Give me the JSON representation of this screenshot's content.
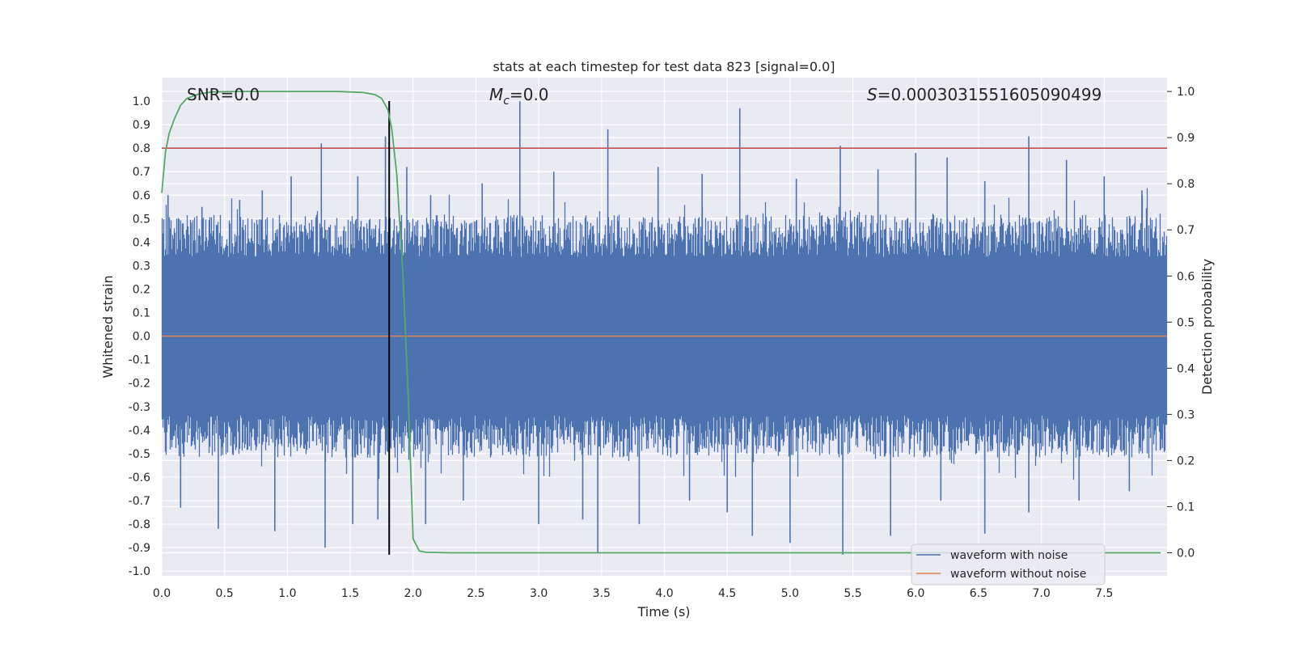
{
  "chart_data": {
    "type": "line",
    "title": "stats at each timestep for test data 823 [signal=0.0]",
    "xlabel": "Time (s)",
    "ylabel": "Whitened strain",
    "ylabel_right": "Detection probability",
    "xlim": [
      0.0,
      8.0
    ],
    "ylim": [
      -1.02,
      1.1
    ],
    "ylim_right": [
      -0.05,
      1.03
    ],
    "xticks": [
      "0.0",
      "0.5",
      "1.0",
      "1.5",
      "2.0",
      "2.5",
      "3.0",
      "3.5",
      "4.0",
      "4.5",
      "5.0",
      "5.5",
      "6.0",
      "6.5",
      "7.0",
      "7.5"
    ],
    "yticks_left": [
      "1.0",
      "0.9",
      "0.8",
      "0.7",
      "0.6",
      "0.5",
      "0.4",
      "0.3",
      "0.2",
      "0.1",
      "0.0",
      "-0.1",
      "-0.2",
      "-0.3",
      "-0.4",
      "-0.5",
      "-0.6",
      "-0.7",
      "-0.8",
      "-0.9",
      "-1.0"
    ],
    "yticks_right": [
      "1.0",
      "0.9",
      "0.8",
      "0.7",
      "0.6",
      "0.5",
      "0.4",
      "0.3",
      "0.2",
      "0.1",
      "0.0"
    ],
    "annotations": {
      "snr": "SNR=0.0",
      "mc_symbol": "M",
      "mc_sub": "c",
      "mc_value": "=0.0",
      "s_symbol": "S",
      "s_value": "=0.0003031551605090499"
    },
    "threshold_line": {
      "y": 0.8,
      "color": "#c44e52"
    },
    "vertical_line": {
      "x": 1.81,
      "y_from": -0.93,
      "y_to": 1.0,
      "color": "#000000"
    },
    "noise_envelope": {
      "typical_max": 0.45,
      "typical_min": -0.45,
      "spikes_up": [
        [
          0.05,
          0.6
        ],
        [
          0.32,
          0.55
        ],
        [
          0.62,
          0.58
        ],
        [
          0.8,
          0.62
        ],
        [
          1.03,
          0.68
        ],
        [
          1.27,
          0.82
        ],
        [
          1.56,
          0.68
        ],
        [
          1.78,
          0.85
        ],
        [
          1.95,
          0.72
        ],
        [
          2.14,
          0.6
        ],
        [
          2.55,
          0.65
        ],
        [
          2.85,
          1.0
        ],
        [
          3.12,
          0.7
        ],
        [
          3.55,
          0.88
        ],
        [
          3.95,
          0.72
        ],
        [
          4.3,
          0.69
        ],
        [
          4.6,
          0.97
        ],
        [
          5.05,
          0.67
        ],
        [
          5.4,
          0.81
        ],
        [
          5.7,
          0.71
        ],
        [
          6.0,
          0.78
        ],
        [
          6.25,
          0.76
        ],
        [
          6.55,
          0.66
        ],
        [
          6.9,
          0.85
        ],
        [
          7.2,
          0.75
        ],
        [
          7.5,
          0.68
        ],
        [
          7.8,
          0.62
        ]
      ],
      "spikes_down": [
        [
          0.15,
          -0.73
        ],
        [
          0.45,
          -0.82
        ],
        [
          0.9,
          -0.83
        ],
        [
          1.3,
          -0.9
        ],
        [
          1.52,
          -0.8
        ],
        [
          1.72,
          -0.78
        ],
        [
          2.1,
          -0.8
        ],
        [
          2.4,
          -0.7
        ],
        [
          3.0,
          -0.8
        ],
        [
          3.35,
          -0.78
        ],
        [
          3.47,
          -0.92
        ],
        [
          3.8,
          -0.8
        ],
        [
          4.2,
          -0.7
        ],
        [
          4.5,
          -0.75
        ],
        [
          4.7,
          -0.85
        ],
        [
          5.0,
          -0.88
        ],
        [
          5.42,
          -0.93
        ],
        [
          5.8,
          -0.85
        ],
        [
          6.2,
          -0.7
        ],
        [
          6.55,
          -0.84
        ],
        [
          6.9,
          -0.75
        ],
        [
          7.3,
          -0.7
        ],
        [
          7.7,
          -0.66
        ]
      ]
    },
    "detection_probability": {
      "x": [
        0.0,
        0.03,
        0.06,
        0.1,
        0.15,
        0.2,
        0.3,
        0.4,
        0.6,
        1.0,
        1.4,
        1.6,
        1.7,
        1.75,
        1.8,
        1.83,
        1.87,
        1.92,
        1.96,
        2.0,
        2.05,
        2.1,
        2.3,
        3.0,
        4.0,
        5.0,
        6.0,
        7.0,
        7.95
      ],
      "y": [
        0.78,
        0.87,
        0.91,
        0.94,
        0.97,
        0.985,
        0.995,
        0.999,
        1.0,
        1.0,
        1.0,
        0.998,
        0.993,
        0.985,
        0.96,
        0.92,
        0.82,
        0.6,
        0.35,
        0.03,
        0.004,
        0.001,
        0.0,
        0.0,
        0.0,
        0.0,
        0.0,
        0.0,
        0.0
      ],
      "color": "#55a868"
    },
    "series": [
      {
        "name": "waveform with noise",
        "color": "#4c72b0"
      },
      {
        "name": "waveform without noise",
        "color": "#dd8452",
        "y": 0.0
      }
    ],
    "legend_position": "lower-right",
    "grid": true,
    "colors": {
      "axes_bg": "#eaeaf2",
      "grid": "#ffffff"
    }
  }
}
